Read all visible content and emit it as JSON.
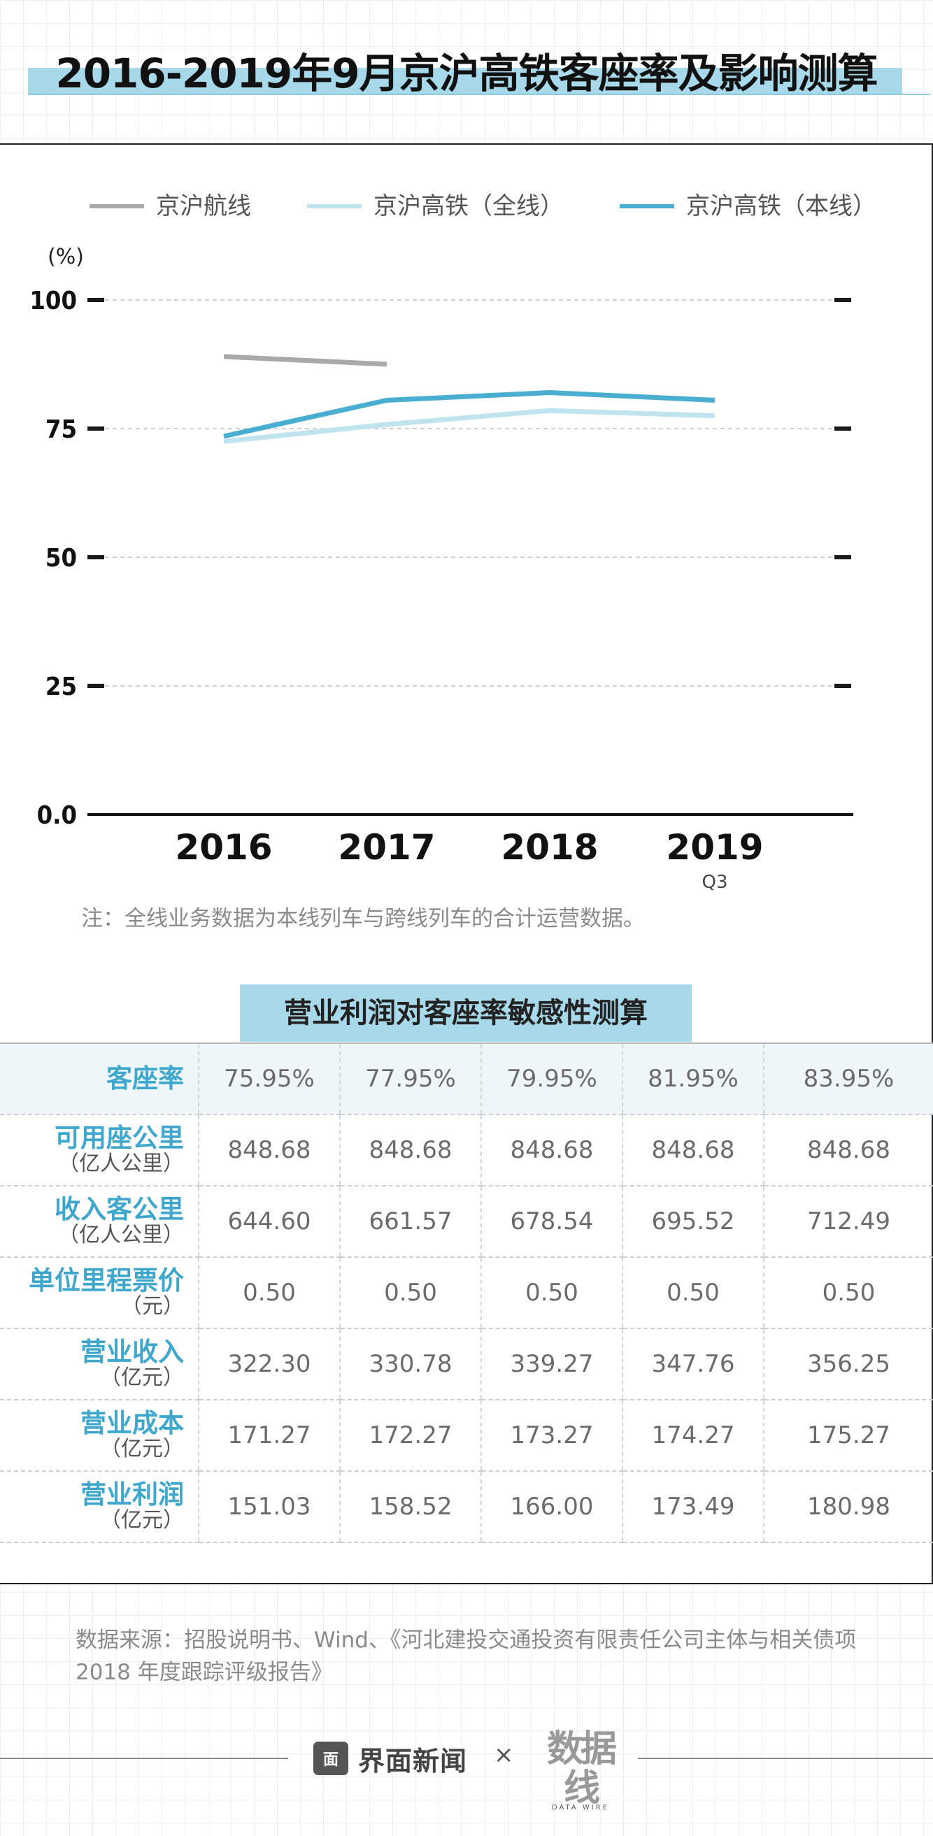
{
  "title": "2016-2019年9月京沪高铁客座率及影响测算",
  "chart_data": {
    "type": "line",
    "ylabel": "(%)",
    "ylim": [
      0,
      100
    ],
    "yticks": [
      "0.0",
      "25",
      "50",
      "75",
      "100"
    ],
    "categories": [
      "2016",
      "2017",
      "2018",
      "2019"
    ],
    "category_sublabels": [
      "",
      "",
      "",
      "Q3"
    ],
    "grid": true,
    "legend_position": "top",
    "series": [
      {
        "name": "京沪航线",
        "color": "#a9a9a9",
        "values": [
          89,
          87.5,
          null,
          null
        ]
      },
      {
        "name": "京沪高铁（全线）",
        "color": "#bfe3ef",
        "values": [
          72.5,
          75.8,
          78.5,
          77.5
        ]
      },
      {
        "name": "京沪高铁（本线）",
        "color": "#49aed0",
        "values": [
          73.5,
          80.5,
          82,
          80.5
        ]
      }
    ]
  },
  "note": "注：全线业务数据为本线列车与跨线列车的合计运营数据。",
  "table": {
    "title": "营业利润对客座率敏感性测算",
    "rows": [
      {
        "label": "客座率",
        "unit": "",
        "values": [
          "75.95%",
          "77.95%",
          "79.95%",
          "81.95%",
          "83.95%"
        ]
      },
      {
        "label": "可用座公里",
        "unit": "（亿人公里）",
        "values": [
          "848.68",
          "848.68",
          "848.68",
          "848.68",
          "848.68"
        ]
      },
      {
        "label": "收入客公里",
        "unit": "（亿人公里）",
        "values": [
          "644.60",
          "661.57",
          "678.54",
          "695.52",
          "712.49"
        ]
      },
      {
        "label": "单位里程票价",
        "unit": "（元）",
        "values": [
          "0.50",
          "0.50",
          "0.50",
          "0.50",
          "0.50"
        ]
      },
      {
        "label": "营业收入",
        "unit": "（亿元）",
        "values": [
          "322.30",
          "330.78",
          "339.27",
          "347.76",
          "356.25"
        ]
      },
      {
        "label": "营业成本",
        "unit": "（亿元）",
        "values": [
          "171.27",
          "172.27",
          "173.27",
          "174.27",
          "175.27"
        ]
      },
      {
        "label": "营业利润",
        "unit": "（亿元）",
        "values": [
          "151.03",
          "158.52",
          "166.00",
          "173.49",
          "180.98"
        ]
      }
    ]
  },
  "source": "数据来源：招股说明书、Wind、《河北建投交通投资有限责任公司主体与相关债项 2018 年度跟踪评级报告》",
  "footer": {
    "brand_icon": "面",
    "brand": "界面新闻",
    "times": "×",
    "partner": "数据线",
    "partner_sub": "DATA WIRE"
  }
}
